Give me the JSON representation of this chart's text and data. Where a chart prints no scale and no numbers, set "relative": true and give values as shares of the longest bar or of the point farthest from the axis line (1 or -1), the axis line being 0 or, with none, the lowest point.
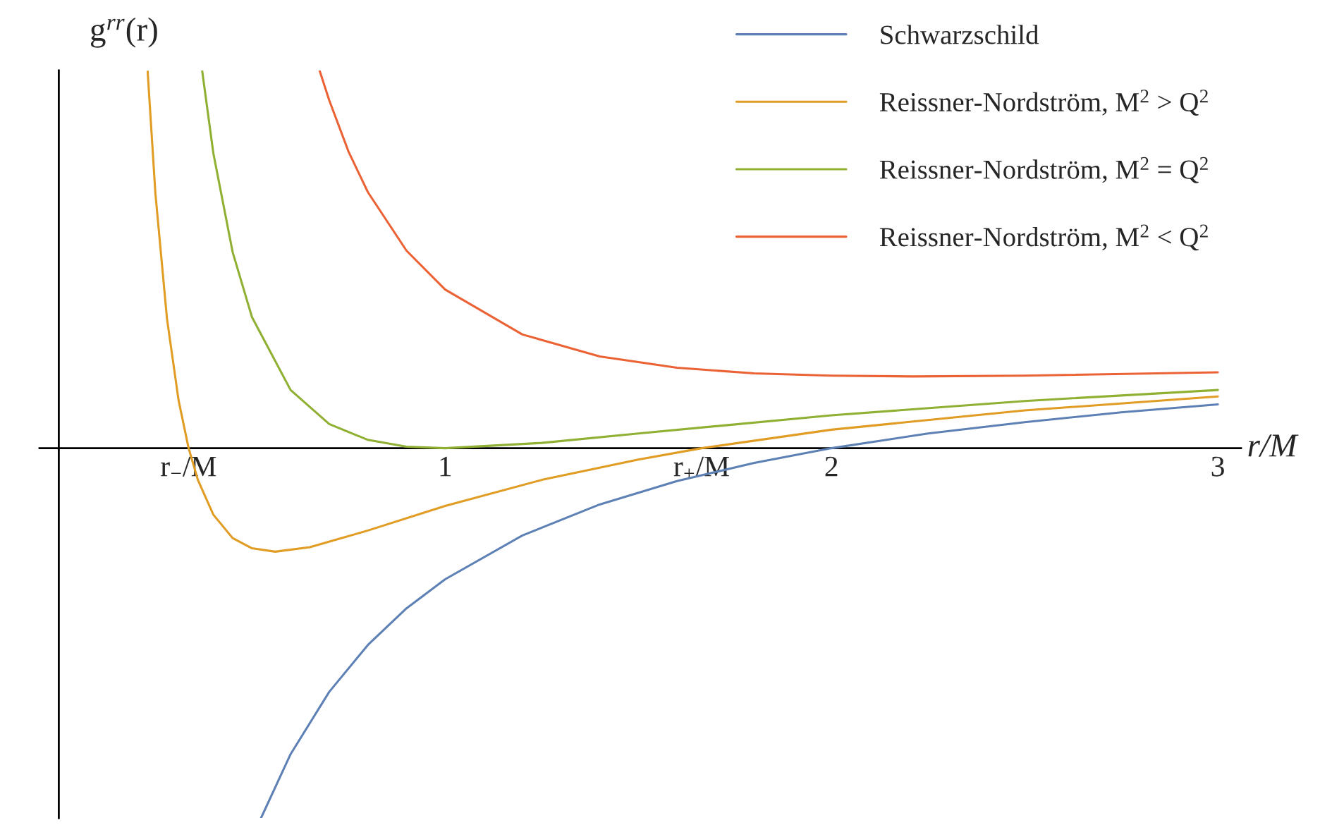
{
  "chart_data": {
    "type": "line",
    "relative": true,
    "ylabel": "g$^{rr}$(r)",
    "xlabel": "r/M",
    "xlim": [
      -0.05,
      3.06
    ],
    "xticks": [
      {
        "value": 0.336,
        "label": "r$_{−}$/M"
      },
      1,
      {
        "value": 1.664,
        "label": "r$_{+}$/M"
      },
      2,
      3
    ],
    "tick_labels": "x",
    "grid": false,
    "legend": "top right",
    "marker": "none",
    "line_style": "solid",
    "series": [
      {
        "name": "Schwarzschild",
        "color": "#5e81b5",
        "x": [
          0.5236,
          0.6,
          0.7,
          0.8,
          0.9,
          1.0,
          1.2,
          1.4,
          1.6,
          1.8,
          2.0,
          2.25,
          2.5,
          2.75,
          3.0
        ],
        "values": [
          -0.979,
          -0.81,
          -0.645,
          -0.521,
          -0.424,
          -0.347,
          -0.231,
          -0.149,
          -0.087,
          -0.039,
          0,
          0.039,
          0.069,
          0.095,
          0.116
        ]
      },
      {
        "name": "Reissner-Nordström, M$^{2}$ > Q$^{2}$",
        "color": "#e19c24",
        "x": [
          0.23,
          0.25,
          0.28,
          0.31,
          0.336,
          0.36,
          0.4,
          0.45,
          0.5,
          0.56,
          0.65,
          0.8,
          1.0,
          1.25,
          1.5,
          1.664,
          2.0,
          2.5,
          3.0
        ],
        "values": [
          0.997,
          0.675,
          0.343,
          0.127,
          0,
          -0.084,
          -0.176,
          -0.238,
          -0.265,
          -0.274,
          -0.262,
          -0.218,
          -0.153,
          -0.084,
          -0.03,
          0,
          0.049,
          0.1,
          0.137
        ]
      },
      {
        "name": "Reissner-Nordström, M$^{2}$ = Q$^{2}$",
        "color": "#8fb032",
        "x": [
          0.371,
          0.4,
          0.45,
          0.5,
          0.6,
          0.7,
          0.8,
          0.9,
          1.0,
          1.25,
          1.5,
          2.0,
          2.5,
          3.0
        ],
        "values": [
          1.0,
          0.781,
          0.519,
          0.347,
          0.154,
          0.064,
          0.022,
          0.004,
          0,
          0.014,
          0.039,
          0.087,
          0.125,
          0.154
        ]
      },
      {
        "name": "Reissner-Nordström, M$^{2}$ < Q$^{2}$",
        "color": "#eb6235",
        "x": [
          0.675,
          0.7,
          0.75,
          0.8,
          0.9,
          1.0,
          1.2,
          1.4,
          1.6,
          1.8,
          2.0,
          2.21,
          2.5,
          3.0
        ],
        "values": [
          1.0,
          0.921,
          0.785,
          0.678,
          0.523,
          0.42,
          0.301,
          0.243,
          0.213,
          0.198,
          0.192,
          0.19,
          0.192,
          0.201
        ]
      }
    ]
  }
}
